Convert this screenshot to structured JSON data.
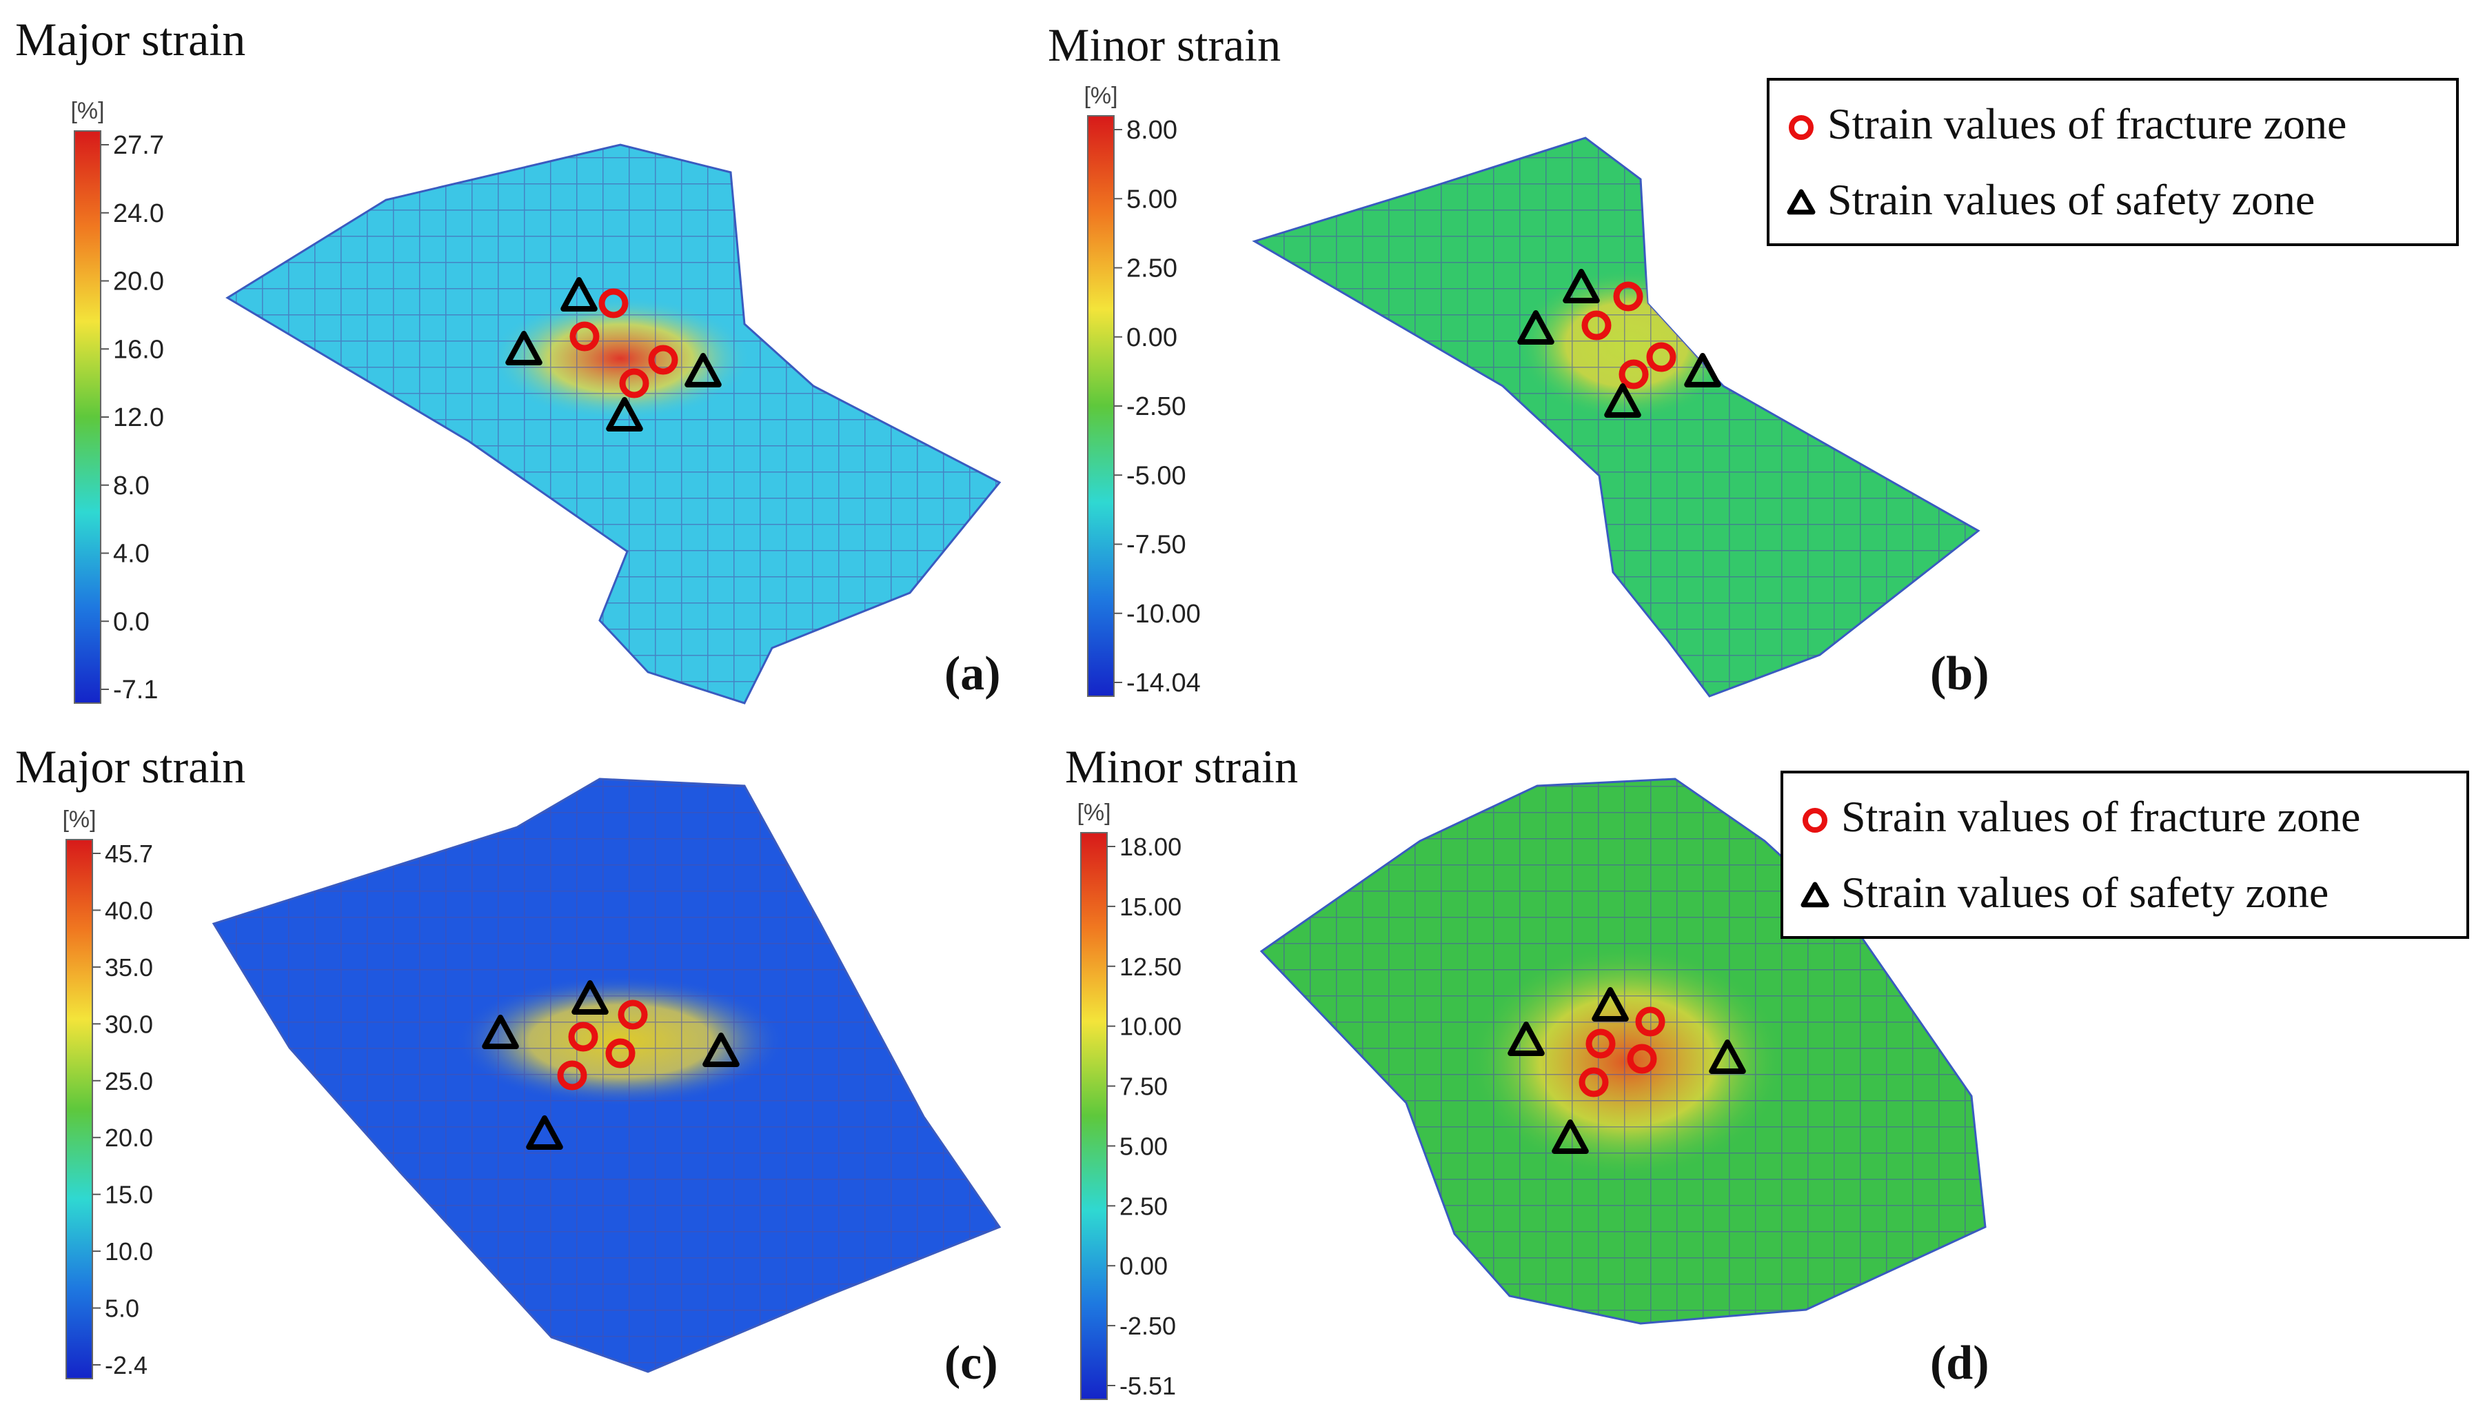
{
  "panels": [
    {
      "id": "a",
      "title": "Major strain",
      "unit": "[%]",
      "ticks": [
        "27.7",
        "24.0",
        "20.0",
        "16.0",
        "12.0",
        "8.0",
        "4.0",
        "0.0",
        "-7.1"
      ],
      "panel_label": "(a)",
      "sheet": "dog-bone",
      "background_color": "#3cc6e6",
      "hot_color": "#e83020"
    },
    {
      "id": "b",
      "title": "Minor strain",
      "unit": "[%]",
      "ticks": [
        "8.00",
        "5.00",
        "2.50",
        "0.00",
        "-2.50",
        "-5.00",
        "-7.50",
        "-10.00",
        "-14.04"
      ],
      "panel_label": "(b)",
      "sheet": "dog-bone",
      "background_color": "#34c86a",
      "hot_color": "#c8dc40"
    },
    {
      "id": "c",
      "title": "Major strain",
      "unit": "[%]",
      "ticks": [
        "45.7",
        "40.0",
        "35.0",
        "30.0",
        "25.0",
        "20.0",
        "15.0",
        "10.0",
        "5.0",
        "-2.4"
      ],
      "panel_label": "(c)",
      "sheet": "rectangular",
      "background_color": "#1f58e0",
      "hot_color": "#e8d020"
    },
    {
      "id": "d",
      "title": "Minor strain",
      "unit": "[%]",
      "ticks": [
        "18.00",
        "15.00",
        "12.50",
        "10.00",
        "7.50",
        "5.00",
        "2.50",
        "0.00",
        "-2.50",
        "-5.51"
      ],
      "panel_label": "(d)",
      "sheet": "rectangular",
      "background_color": "#3cc04a",
      "hot_color": "#e85020"
    }
  ],
  "legend": {
    "fracture_label": "Strain values of fracture zone",
    "safety_label": "Strain values of safety zone",
    "fracture_color": "#e81010",
    "safety_color": "#000000"
  },
  "colorbar_colors": [
    "#d71a1a",
    "#f07820",
    "#f3e43a",
    "#5ec83c",
    "#2fd8d2",
    "#1e78e0",
    "#1424c8"
  ]
}
